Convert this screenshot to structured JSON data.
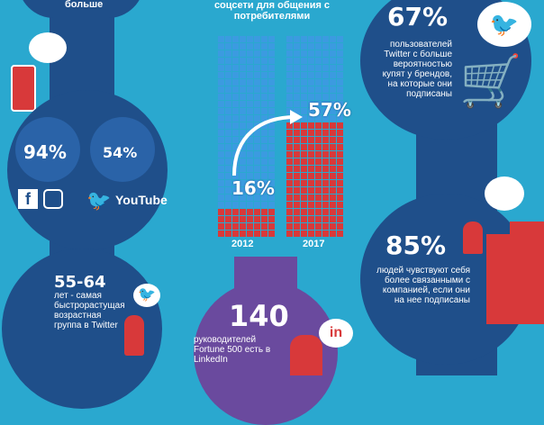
{
  "left": {
    "top_text": "больше",
    "stat_a_value": "94%",
    "stat_b_value": "54%",
    "stat_a_icons": [
      "facebook-icon",
      "instagram-icon"
    ],
    "stat_b_icons": [
      "twitter-bird-icon"
    ],
    "youtube_logo_text": "YouTube",
    "age_value": "55-64",
    "age_text": "лет - самая быстрорастущая возрастная группа в Twitter"
  },
  "center": {
    "heading": "соцсети для общения с потребителями",
    "chart_data": {
      "type": "bar",
      "categories": [
        "2012",
        "2017"
      ],
      "values": [
        16,
        57
      ],
      "data_labels": [
        "16%",
        "57%"
      ],
      "ylim": [
        0,
        100
      ]
    },
    "fortune_value": "140",
    "fortune_text": "руководителей Fortune 500 есть в LinkedIn",
    "linkedin_logo": "in"
  },
  "right": {
    "twitter_value": "67%",
    "twitter_text": "пользователей Twitter с больше вероятностью купят у брендов, на которые они подписаны",
    "connected_value": "85%",
    "connected_text": "людей чувствуют себя более связанными с компанией, если они на нее подписаны"
  },
  "colors": {
    "background": "#2aa8cf",
    "navy": "#1f4f8a",
    "red": "#d8393a",
    "grid_blue": "#3b9be0",
    "purple": "#6a4a9e"
  }
}
